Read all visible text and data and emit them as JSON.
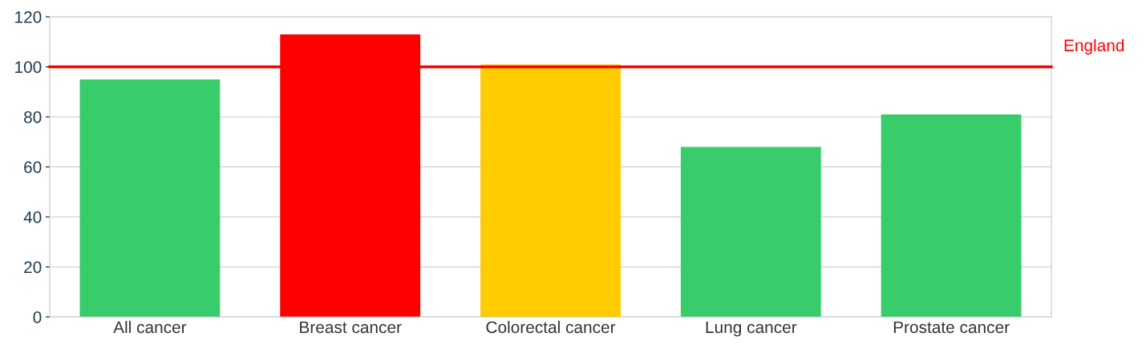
{
  "chart_data": {
    "type": "bar",
    "categories": [
      "All cancer",
      "Breast cancer",
      "Colorectal cancer",
      "Lung cancer",
      "Prostate cancer"
    ],
    "values": [
      95,
      113,
      101,
      68,
      81
    ],
    "colors": [
      "#38cd6a",
      "#ff0000",
      "#ffcc00",
      "#38cd6a",
      "#38cd6a"
    ],
    "ylim": [
      0,
      120
    ],
    "yticks": [
      0,
      20,
      40,
      60,
      80,
      100,
      120
    ],
    "grid": "y",
    "legend": false,
    "ref_lines": [
      {
        "axis": "y",
        "value": 100,
        "label": "England",
        "color": "#ff0000"
      }
    ]
  }
}
